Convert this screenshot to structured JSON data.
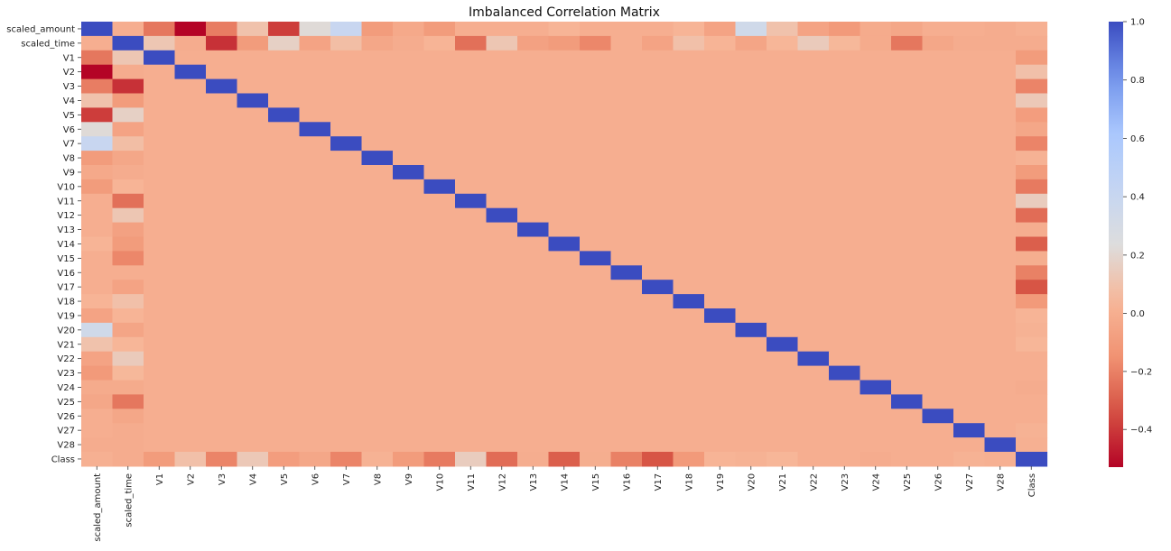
{
  "chart_data": {
    "type": "heatmap",
    "title": "Imbalanced Correlation Matrix",
    "labels": [
      "scaled_amount",
      "scaled_time",
      "V1",
      "V2",
      "V3",
      "V4",
      "V5",
      "V6",
      "V7",
      "V8",
      "V9",
      "V10",
      "V11",
      "V12",
      "V13",
      "V14",
      "V15",
      "V16",
      "V17",
      "V18",
      "V19",
      "V20",
      "V21",
      "V22",
      "V23",
      "V24",
      "V25",
      "V26",
      "V27",
      "V28",
      "Class"
    ],
    "scaled_amount_col": [
      1.0,
      0.0,
      -0.23,
      -0.53,
      -0.21,
      0.1,
      -0.39,
      0.22,
      0.4,
      -0.1,
      -0.03,
      -0.1,
      0.0,
      0.0,
      0.0,
      0.03,
      0.0,
      0.0,
      0.0,
      0.03,
      -0.06,
      0.34,
      0.1,
      -0.06,
      -0.11,
      -0.02,
      -0.04,
      0.0,
      0.0,
      -0.01,
      0.01
    ],
    "scaled_time_col": [
      0.0,
      1.0,
      0.12,
      -0.01,
      -0.42,
      -0.1,
      0.17,
      -0.06,
      0.08,
      -0.04,
      -0.01,
      0.03,
      -0.25,
      0.12,
      -0.07,
      -0.1,
      -0.18,
      0.0,
      -0.06,
      0.09,
      0.03,
      -0.05,
      0.04,
      0.14,
      0.05,
      -0.02,
      -0.23,
      -0.04,
      -0.01,
      -0.01,
      -0.01
    ],
    "class_col": [
      0.01,
      -0.01,
      -0.1,
      0.09,
      -0.19,
      0.13,
      -0.09,
      -0.04,
      -0.19,
      0.02,
      -0.1,
      -0.22,
      0.15,
      -0.26,
      -0.005,
      -0.3,
      -0.004,
      -0.2,
      -0.33,
      -0.11,
      0.03,
      0.02,
      0.04,
      0.0,
      0.0,
      -0.01,
      0.0,
      0.0,
      0.02,
      0.01,
      1.0
    ],
    "default_value": 0.0,
    "colormap": "coolwarm",
    "vmin": -0.53,
    "vmax": 1.0,
    "colorbar_ticks": [
      "1.0",
      "0.8",
      "0.6",
      "0.4",
      "0.2",
      "0.0",
      "−0.2",
      "−0.4"
    ],
    "colorbar_tick_values": [
      1.0,
      0.8,
      0.6,
      0.4,
      0.2,
      0.0,
      -0.2,
      -0.4
    ],
    "colors": {
      "high": "#3b4cc0",
      "mid": "#dddddd",
      "low": "#b40426"
    }
  }
}
